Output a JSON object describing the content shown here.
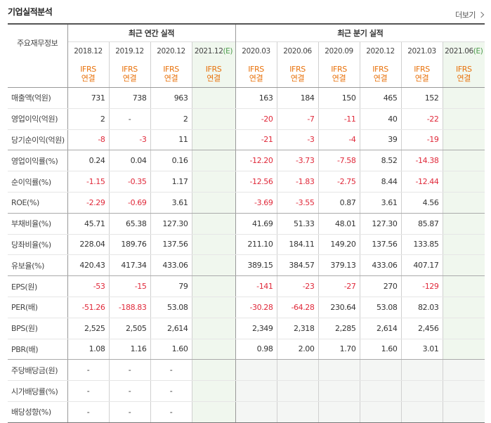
{
  "section_title": "기업실적분석",
  "more_label": "더보기",
  "header": {
    "row_label": "주요재무정보",
    "annual_label": "최근 연간 실적",
    "quarter_label": "최근 분기 실적",
    "annual_periods": [
      "2018.12",
      "2019.12",
      "2020.12",
      "2021.12"
    ],
    "annual_estimate_suffix": "(E)",
    "quarter_periods": [
      "2020.03",
      "2020.06",
      "2020.09",
      "2020.12",
      "2021.03",
      "2021.06"
    ],
    "quarter_estimate_suffix": "(E)",
    "ifrs_line1": "IFRS",
    "ifrs_line2": "연결"
  },
  "rows": [
    {
      "label": "매출액(억원)",
      "values": [
        "731",
        "738",
        "963",
        "",
        "163",
        "184",
        "150",
        "465",
        "152",
        ""
      ]
    },
    {
      "label": "영업이익(억원)",
      "values": [
        "2",
        "-",
        "2",
        "",
        "-20",
        "-7",
        "-11",
        "40",
        "-22",
        ""
      ]
    },
    {
      "label": "당기순이익(억원)",
      "values": [
        "-8",
        "-3",
        "11",
        "",
        "-21",
        "-3",
        "-4",
        "39",
        "-19",
        ""
      ]
    },
    {
      "label": "영업이익률(%)",
      "values": [
        "0.24",
        "0.04",
        "0.16",
        "",
        "-12.20",
        "-3.73",
        "-7.58",
        "8.52",
        "-14.38",
        ""
      ]
    },
    {
      "label": "순이익률(%)",
      "values": [
        "-1.15",
        "-0.35",
        "1.17",
        "",
        "-12.56",
        "-1.83",
        "-2.75",
        "8.44",
        "-12.44",
        ""
      ]
    },
    {
      "label": "ROE(%)",
      "values": [
        "-2.29",
        "-0.69",
        "3.61",
        "",
        "-3.69",
        "-3.55",
        "0.87",
        "3.61",
        "4.56",
        ""
      ]
    },
    {
      "label": "부채비율(%)",
      "values": [
        "45.71",
        "65.38",
        "127.30",
        "",
        "41.69",
        "51.33",
        "48.01",
        "127.30",
        "85.87",
        ""
      ]
    },
    {
      "label": "당좌비율(%)",
      "values": [
        "228.04",
        "189.76",
        "137.56",
        "",
        "211.10",
        "184.11",
        "149.20",
        "137.56",
        "133.85",
        ""
      ]
    },
    {
      "label": "유보율(%)",
      "values": [
        "420.43",
        "417.34",
        "433.06",
        "",
        "389.15",
        "384.57",
        "379.13",
        "433.06",
        "407.17",
        ""
      ]
    },
    {
      "label": "EPS(원)",
      "values": [
        "-53",
        "-15",
        "79",
        "",
        "-141",
        "-23",
        "-27",
        "270",
        "-129",
        ""
      ]
    },
    {
      "label": "PER(배)",
      "values": [
        "-51.26",
        "-188.83",
        "53.08",
        "",
        "-30.28",
        "-64.28",
        "230.64",
        "53.08",
        "82.03",
        ""
      ]
    },
    {
      "label": "BPS(원)",
      "values": [
        "2,525",
        "2,505",
        "2,614",
        "",
        "2,349",
        "2,318",
        "2,285",
        "2,614",
        "2,456",
        ""
      ]
    },
    {
      "label": "PBR(배)",
      "values": [
        "1.08",
        "1.16",
        "1.60",
        "",
        "0.98",
        "2.00",
        "1.70",
        "1.60",
        "3.01",
        ""
      ]
    },
    {
      "label": "주당배당금(원)",
      "values": [
        "-",
        "-",
        "-",
        "",
        "",
        "",
        "",
        "",
        "",
        ""
      ]
    },
    {
      "label": "시가배당률(%)",
      "values": [
        "-",
        "-",
        "-",
        "",
        "",
        "",
        "",
        "",
        "",
        ""
      ]
    },
    {
      "label": "배당성향(%)",
      "values": [
        "-",
        "-",
        "-",
        "",
        "",
        "",
        "",
        "",
        "",
        ""
      ]
    }
  ]
}
